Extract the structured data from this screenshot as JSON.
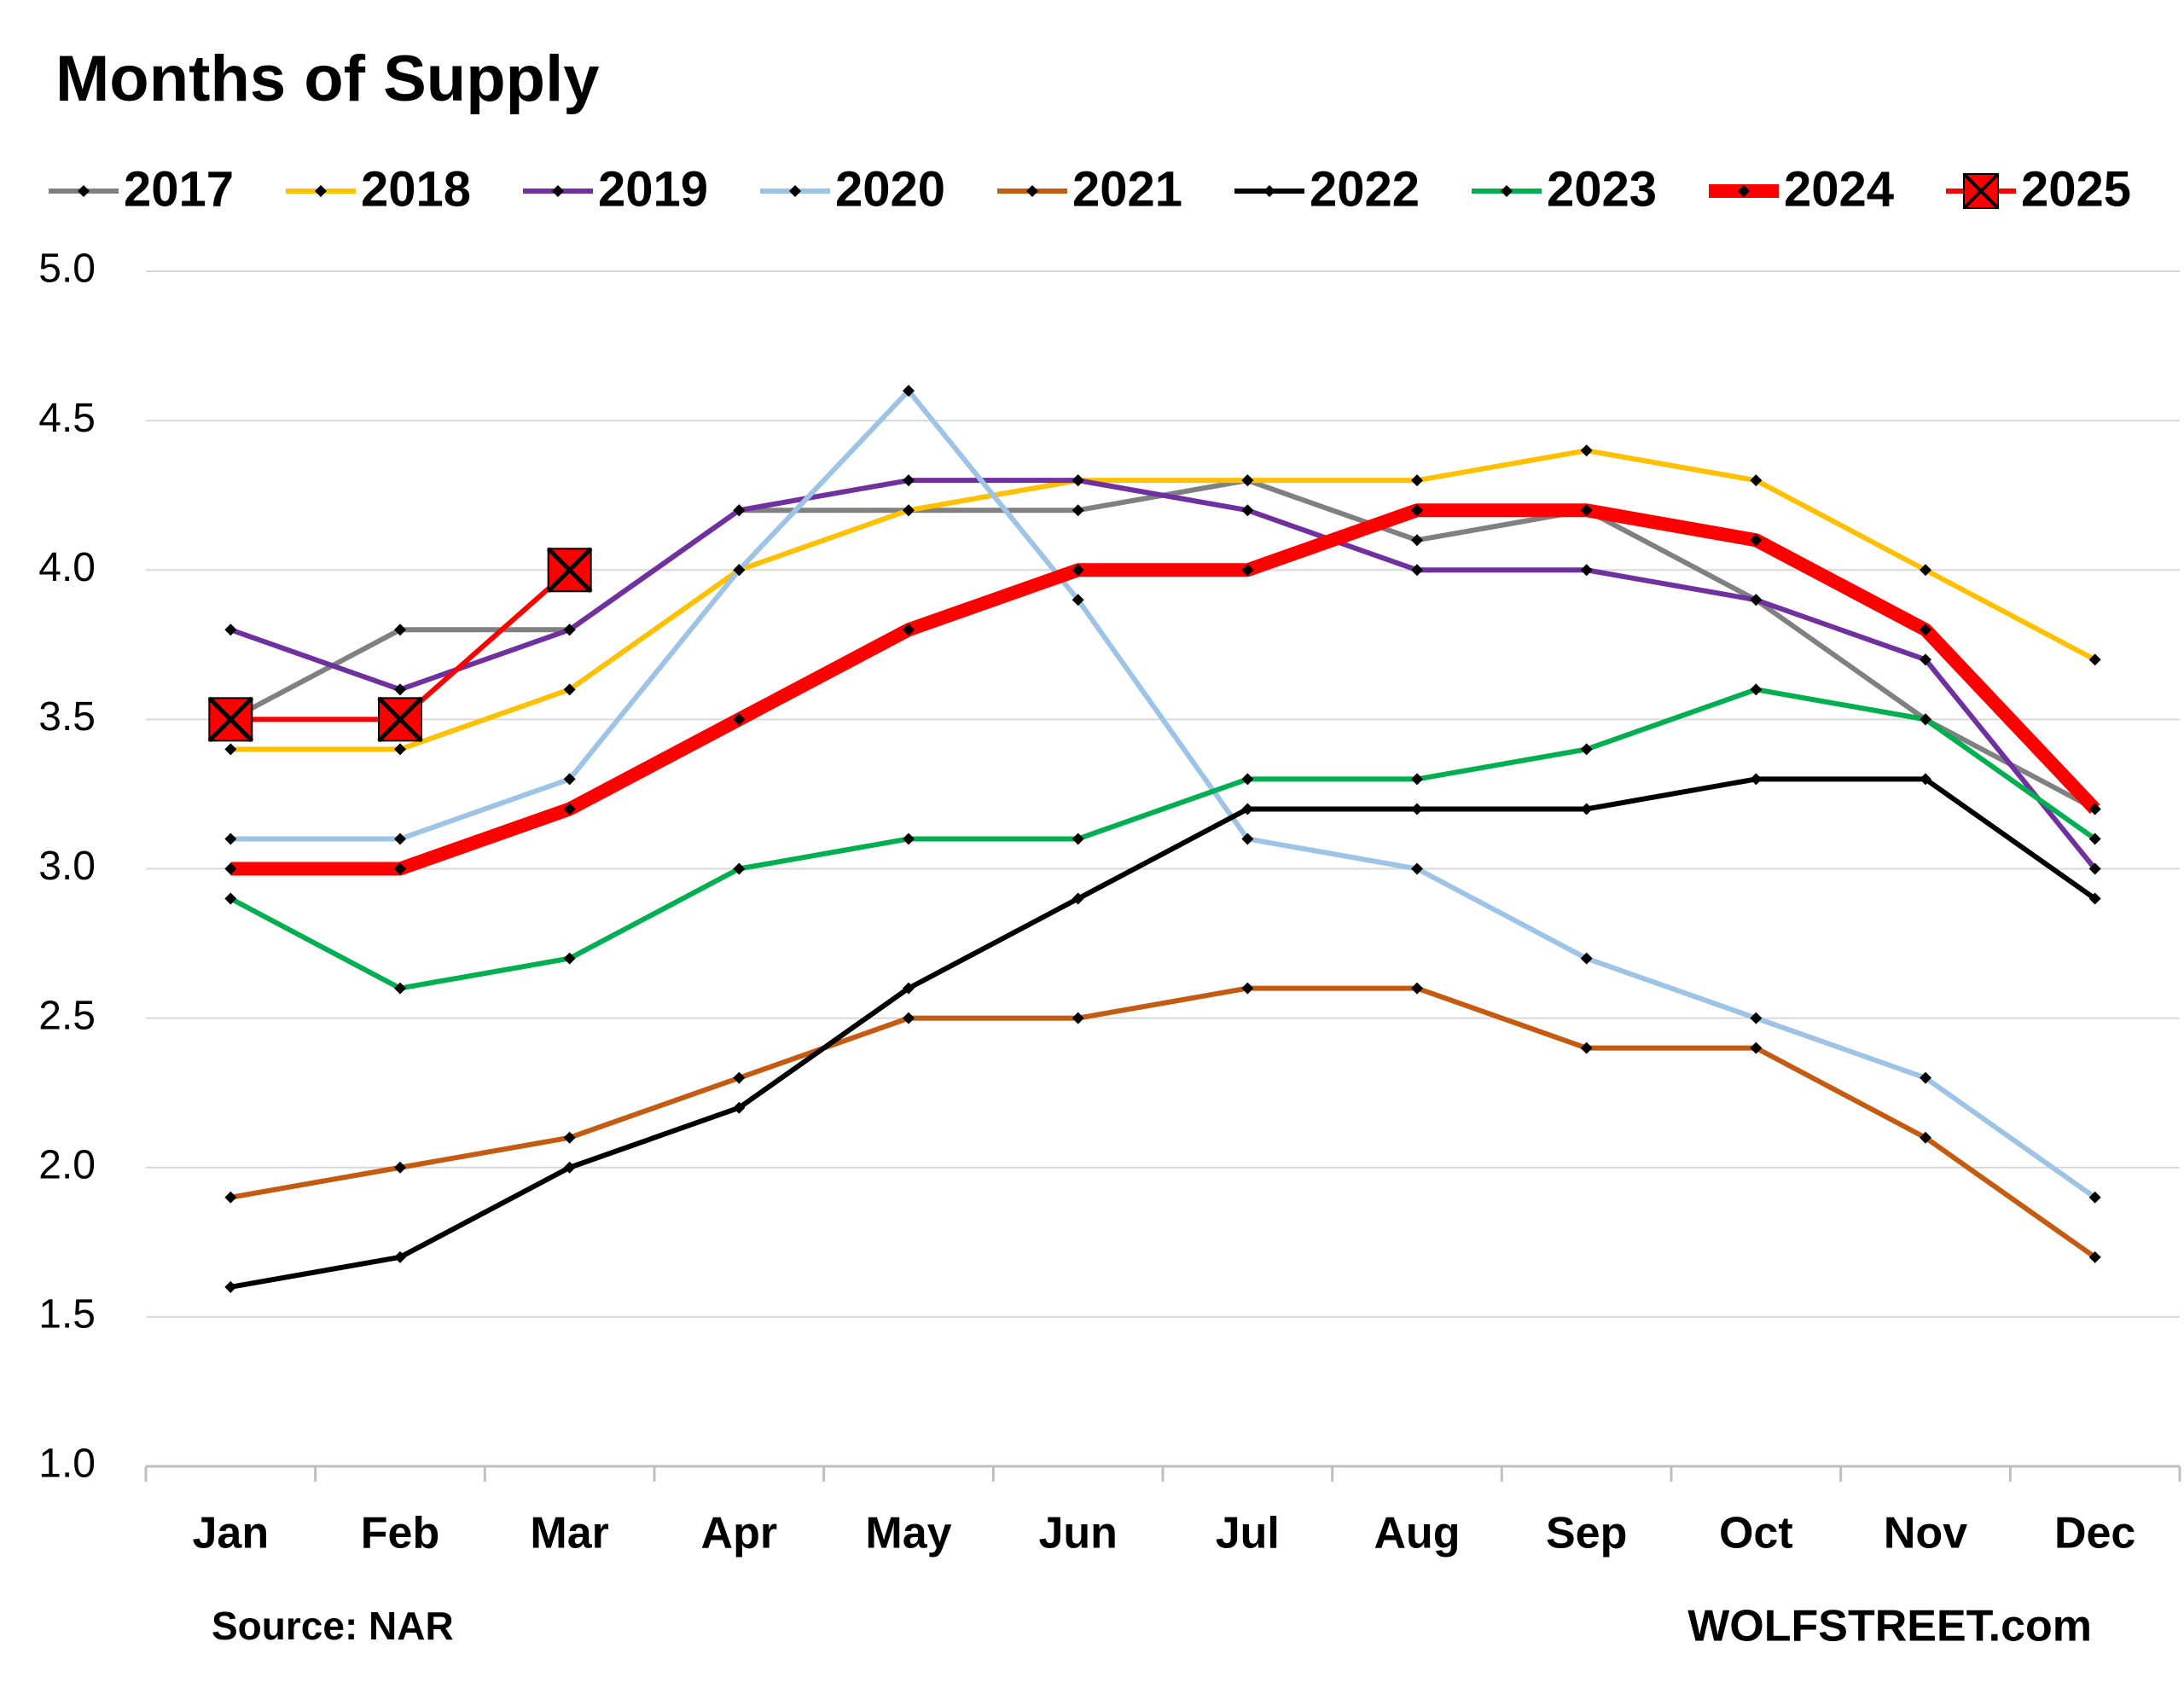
{
  "chart_data": {
    "type": "line",
    "title": "Months of Supply",
    "categories": [
      "Jan",
      "Feb",
      "Mar",
      "Apr",
      "May",
      "Jun",
      "Jul",
      "Aug",
      "Sep",
      "Oct",
      "Nov",
      "Dec"
    ],
    "series": [
      {
        "name": "2017",
        "color": "#808080",
        "linewidth": 6,
        "marker": "diamond",
        "values": [
          3.5,
          3.8,
          3.8,
          4.2,
          4.2,
          4.2,
          4.3,
          4.1,
          4.2,
          3.9,
          3.5,
          3.2
        ]
      },
      {
        "name": "2018",
        "color": "#FFC000",
        "linewidth": 6,
        "marker": "diamond",
        "values": [
          3.4,
          3.4,
          3.6,
          4.0,
          4.2,
          4.3,
          4.3,
          4.3,
          4.4,
          4.3,
          4.0,
          3.7
        ]
      },
      {
        "name": "2019",
        "color": "#7030A0",
        "linewidth": 6,
        "marker": "diamond",
        "values": [
          3.8,
          3.6,
          3.8,
          4.2,
          4.3,
          4.3,
          4.2,
          4.0,
          4.0,
          3.9,
          3.7,
          3.0
        ]
      },
      {
        "name": "2020",
        "color": "#9DC3E6",
        "linewidth": 6,
        "marker": "diamond",
        "values": [
          3.1,
          3.1,
          3.3,
          4.0,
          4.6,
          3.9,
          3.1,
          3.0,
          2.7,
          2.5,
          2.3,
          1.9
        ]
      },
      {
        "name": "2021",
        "color": "#C55A11",
        "linewidth": 6,
        "marker": "diamond",
        "values": [
          1.9,
          2.0,
          2.1,
          2.3,
          2.5,
          2.5,
          2.6,
          2.6,
          2.4,
          2.4,
          2.1,
          1.7
        ]
      },
      {
        "name": "2022",
        "color": "#000000",
        "linewidth": 6,
        "marker": "diamond",
        "values": [
          1.6,
          1.7,
          2.0,
          2.2,
          2.6,
          2.9,
          3.2,
          3.2,
          3.2,
          3.3,
          3.3,
          2.9
        ]
      },
      {
        "name": "2023",
        "color": "#00B050",
        "linewidth": 6,
        "marker": "diamond",
        "values": [
          2.9,
          2.6,
          2.7,
          3.0,
          3.1,
          3.1,
          3.3,
          3.3,
          3.4,
          3.6,
          3.5,
          3.1
        ]
      },
      {
        "name": "2024",
        "color": "#FF0000",
        "linewidth": 16,
        "marker": "diamond",
        "values": [
          3.0,
          3.0,
          3.2,
          3.5,
          3.8,
          4.0,
          4.0,
          4.2,
          4.2,
          4.1,
          3.8,
          3.2
        ]
      },
      {
        "name": "2025",
        "color": "#FF0000",
        "linewidth": 6,
        "marker": "x-square",
        "values": [
          3.5,
          3.5,
          4.0,
          null,
          null,
          null,
          null,
          null,
          null,
          null,
          null,
          null
        ]
      }
    ],
    "ylim": [
      1.0,
      5.0
    ],
    "yticks": [
      {
        "value": 1,
        "label": "1.0"
      },
      1.5,
      {
        "value": 2,
        "label": "2.0"
      },
      2.5,
      {
        "value": 3,
        "label": "3.0"
      },
      3.5,
      {
        "value": 4,
        "label": "4.0"
      },
      4.5,
      {
        "value": 5,
        "label": "5.0"
      }
    ],
    "grid": true,
    "legend": "top",
    "source": "Source: NAR",
    "credit": "WOLFSTREET.com"
  }
}
